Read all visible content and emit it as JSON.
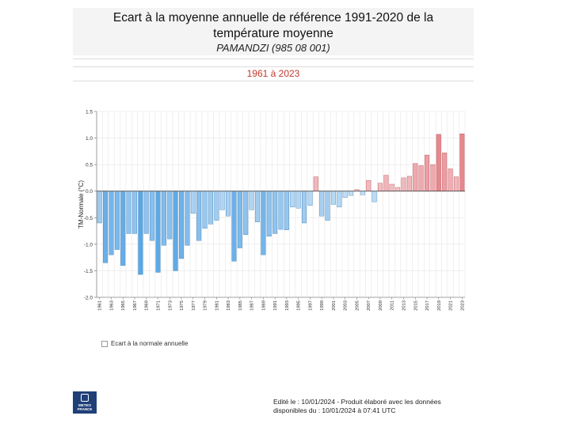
{
  "header": {
    "title_line1": "Ecart à la moyenne annuelle de référence 1991-2020 de la",
    "title_line2": "température moyenne",
    "station": "PAMANDZI (985 08 001)",
    "period": "1961 à 2023"
  },
  "legend": {
    "label": "Ecart à la normale annuelle"
  },
  "logo": {
    "line1": "METEO",
    "line2": "FRANCE"
  },
  "footer": {
    "line1": "Edité le : 10/01/2024 - Produit élaboré avec les données",
    "line2": "disponibles du : 10/01/2024 à 07:41 UTC"
  },
  "colors": {
    "negative": "#5aa7e6",
    "positive": "#e16b72",
    "negative_light": "#c9e2f6",
    "positive_light": "#f4c7ca"
  },
  "chart_data": {
    "type": "bar",
    "ylabel": "TM-Normale (°C)",
    "ylim": [
      -2.0,
      1.5
    ],
    "yticks": [
      -2.0,
      -1.5,
      -1.0,
      -0.5,
      0.0,
      0.5,
      1.0,
      1.5
    ],
    "ytick_labels": [
      "-2.0",
      "-1.5",
      "-1.0",
      "-0.5",
      "0.0",
      "0.5",
      "1.0",
      "1.5"
    ],
    "xtick_labels": [
      "1961",
      "1963",
      "1965",
      "1967",
      "1969",
      "1971",
      "1973",
      "1975",
      "1977",
      "1979",
      "1981",
      "1983",
      "1985",
      "1987",
      "1989",
      "1991",
      "1993",
      "1995",
      "1997",
      "1999",
      "2001",
      "2003",
      "2005",
      "2007",
      "2009",
      "2011",
      "2013",
      "2015",
      "2017",
      "2019",
      "2021",
      "2023"
    ],
    "grid": true,
    "categories": [
      1961,
      1962,
      1963,
      1964,
      1965,
      1966,
      1967,
      1968,
      1969,
      1970,
      1971,
      1972,
      1973,
      1974,
      1975,
      1976,
      1977,
      1978,
      1979,
      1980,
      1981,
      1982,
      1983,
      1984,
      1985,
      1986,
      1987,
      1988,
      1989,
      1990,
      1991,
      1992,
      1993,
      1994,
      1995,
      1996,
      1997,
      1998,
      1999,
      2000,
      2001,
      2002,
      2003,
      2004,
      2005,
      2006,
      2007,
      2008,
      2009,
      2010,
      2011,
      2012,
      2013,
      2014,
      2015,
      2016,
      2017,
      2018,
      2019,
      2020,
      2021,
      2022,
      2023
    ],
    "values": [
      -0.6,
      -1.35,
      -1.2,
      -1.1,
      -1.4,
      -0.8,
      -0.8,
      -1.57,
      -0.8,
      -0.93,
      -1.53,
      -1.02,
      -0.9,
      -1.5,
      -1.27,
      -1.02,
      -0.42,
      -0.93,
      -0.7,
      -0.62,
      -0.55,
      -0.35,
      -0.47,
      -1.32,
      -1.07,
      -0.82,
      -0.35,
      -0.58,
      -1.2,
      -0.85,
      -0.8,
      -0.72,
      -0.73,
      -0.3,
      -0.32,
      -0.6,
      -0.27,
      0.27,
      -0.47,
      -0.55,
      -0.25,
      -0.3,
      -0.12,
      -0.08,
      0.03,
      -0.07,
      0.2,
      -0.2,
      0.15,
      0.3,
      0.13,
      0.07,
      0.25,
      0.28,
      0.52,
      0.48,
      0.68,
      0.5,
      1.07,
      0.72,
      0.42,
      0.27,
      1.08
    ]
  }
}
